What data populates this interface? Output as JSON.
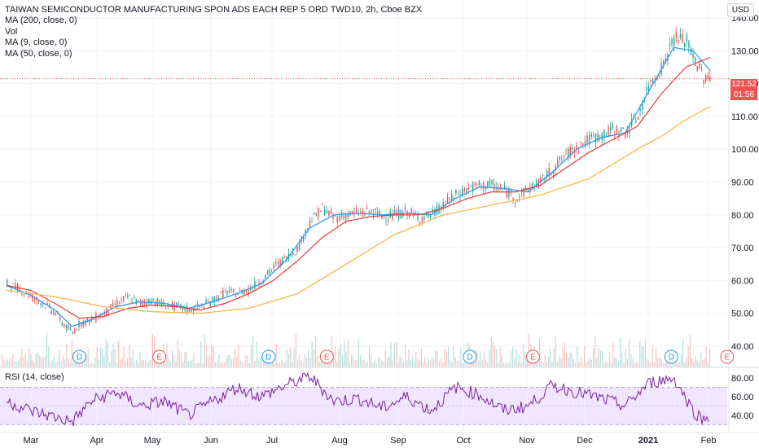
{
  "legend": {
    "title": "TAIWAN SEMICONDUCTOR MANUFACTURING SPON ADS EACH REP 5 ORD TWD10, 2h, Cboe BZX",
    "lines": [
      "MA (200, close, 0)",
      "Vol",
      "MA (9, close, 0)",
      "MA (50, close, 0)"
    ]
  },
  "rsi_legend": "RSI (14, close)",
  "currency": "USD",
  "price_tag": {
    "price": "121.52",
    "countdown": "01:56"
  },
  "colors": {
    "up": "#26a69a",
    "down": "#ef5350",
    "ma200": "#f5b342",
    "ma9": "#2196f3",
    "ma50": "#e53935",
    "rsi": "#7b1fa2",
    "rsi_band": "#f0e6ff"
  },
  "chart_data": [
    {
      "type": "line",
      "title": "TAIWAN SEMICONDUCTOR MANUFACTURING SPON ADS EACH REP 5 ORD TWD10, 2h, Cboe BZX",
      "x_ticks": [
        "Mar",
        "Apr",
        "May",
        "Jun",
        "Jul",
        "Aug",
        "Sep",
        "Oct",
        "Nov",
        "Dec",
        "2021",
        "Feb"
      ],
      "y_ticks": [
        40,
        50,
        60,
        70,
        80,
        90,
        100,
        110,
        120,
        130,
        140
      ],
      "y_tick_labels": [
        "40.00",
        "50.00",
        "60.00",
        "70.00",
        "80.00",
        "90.00",
        "100.00",
        "110.00",
        "120.00",
        "130.00",
        "140.00"
      ],
      "ylim": [
        35,
        143
      ],
      "last_price": 121.52,
      "series": [
        {
          "name": "close",
          "points": [
            [
              0,
              59
            ],
            [
              0.5,
              57.5
            ],
            [
              1,
              55
            ],
            [
              1.5,
              53
            ],
            [
              2,
              50
            ],
            [
              2.4,
              46
            ],
            [
              2.7,
              44
            ],
            [
              3,
              47
            ],
            [
              3.5,
              48
            ],
            [
              4,
              50
            ],
            [
              4.5,
              53
            ],
            [
              5,
              55
            ],
            [
              5.5,
              53
            ],
            [
              6,
              54
            ],
            [
              6.5,
              52.5
            ],
            [
              7,
              52
            ],
            [
              7.5,
              51
            ],
            [
              8,
              52
            ],
            [
              8.5,
              54
            ],
            [
              9,
              56.5
            ],
            [
              9.5,
              56
            ],
            [
              10,
              57.5
            ],
            [
              10.5,
              60
            ],
            [
              11,
              64
            ],
            [
              11.5,
              67
            ],
            [
              12,
              70
            ],
            [
              12.5,
              78
            ],
            [
              13,
              82
            ],
            [
              13.5,
              79
            ],
            [
              14,
              80
            ],
            [
              14.5,
              80.5
            ],
            [
              15,
              81
            ],
            [
              15.5,
              79.5
            ],
            [
              16,
              80
            ],
            [
              16.5,
              81
            ],
            [
              17,
              79
            ],
            [
              17.5,
              80
            ],
            [
              18,
              83
            ],
            [
              18.5,
              86
            ],
            [
              19,
              88
            ],
            [
              19.5,
              89
            ],
            [
              20,
              89
            ],
            [
              20.5,
              87.5
            ],
            [
              21,
              85
            ],
            [
              21.5,
              88
            ],
            [
              22,
              90
            ],
            [
              22.5,
              94
            ],
            [
              23,
              98
            ],
            [
              23.5,
              101
            ],
            [
              24,
              103
            ],
            [
              24.5,
              104
            ],
            [
              25,
              106
            ],
            [
              25.5,
              105
            ],
            [
              26,
              110
            ],
            [
              26.5,
              120
            ],
            [
              27,
              125
            ],
            [
              27.5,
              134
            ],
            [
              28,
              133
            ],
            [
              28.3,
              128
            ],
            [
              28.7,
              122
            ],
            [
              29,
              121.52
            ]
          ]
        },
        {
          "name": "MA (9, close, 0)",
          "points": [
            [
              0,
              58.5
            ],
            [
              1,
              55.5
            ],
            [
              2,
              51
            ],
            [
              2.7,
              46
            ],
            [
              3.5,
              48
            ],
            [
              4.5,
              52
            ],
            [
              5.5,
              53.5
            ],
            [
              6.5,
              53
            ],
            [
              7.5,
              51.5
            ],
            [
              8.5,
              53.5
            ],
            [
              9.5,
              56
            ],
            [
              10.5,
              59
            ],
            [
              11.5,
              66
            ],
            [
              12.5,
              76
            ],
            [
              13.5,
              80
            ],
            [
              14.5,
              80.5
            ],
            [
              15.5,
              80
            ],
            [
              16.5,
              80.5
            ],
            [
              17.5,
              80
            ],
            [
              18.5,
              85
            ],
            [
              19.5,
              88.5
            ],
            [
              20.5,
              88
            ],
            [
              21.5,
              87
            ],
            [
              22.5,
              93
            ],
            [
              23.5,
              100
            ],
            [
              24.5,
              103.5
            ],
            [
              25.5,
              105
            ],
            [
              26.5,
              118
            ],
            [
              27.5,
              131
            ],
            [
              28.3,
              130
            ],
            [
              29,
              124
            ]
          ]
        },
        {
          "name": "MA (50, close, 0)",
          "points": [
            [
              0,
              58.5
            ],
            [
              1,
              57
            ],
            [
              2,
              53
            ],
            [
              3,
              48.5
            ],
            [
              4,
              49
            ],
            [
              5,
              51.5
            ],
            [
              6,
              52.5
            ],
            [
              7,
              52
            ],
            [
              8,
              51
            ],
            [
              9,
              53
            ],
            [
              10,
              56
            ],
            [
              11,
              60
            ],
            [
              12,
              66
            ],
            [
              13,
              73
            ],
            [
              14,
              78
            ],
            [
              15,
              79.5
            ],
            [
              16,
              80
            ],
            [
              17,
              80
            ],
            [
              18,
              82
            ],
            [
              19,
              85
            ],
            [
              20,
              87
            ],
            [
              21,
              87
            ],
            [
              22,
              89
            ],
            [
              23,
              94
            ],
            [
              24,
              99
            ],
            [
              25,
              103
            ],
            [
              26,
              107
            ],
            [
              27,
              117
            ],
            [
              28,
              125
            ],
            [
              29,
              128
            ]
          ]
        },
        {
          "name": "MA (200, close, 0)",
          "points": [
            [
              0,
              57
            ],
            [
              2,
              55
            ],
            [
              4,
              52
            ],
            [
              6,
              50.5
            ],
            [
              8,
              50
            ],
            [
              10,
              51.5
            ],
            [
              12,
              56
            ],
            [
              14,
              65
            ],
            [
              16,
              74
            ],
            [
              18,
              80
            ],
            [
              20,
              83
            ],
            [
              22,
              86
            ],
            [
              24,
              91
            ],
            [
              26,
              100
            ],
            [
              27,
              104
            ],
            [
              28,
              109
            ],
            [
              29,
              113
            ]
          ]
        }
      ],
      "events": [
        {
          "label": "D",
          "x": 3.0
        },
        {
          "label": "E",
          "x": 6.3
        },
        {
          "label": "D",
          "x": 10.8
        },
        {
          "label": "E",
          "x": 13.2
        },
        {
          "label": "D",
          "x": 19.1
        },
        {
          "label": "E",
          "x": 21.7
        },
        {
          "label": "D",
          "x": 27.4
        },
        {
          "label": "E",
          "x": 29.7
        }
      ]
    },
    {
      "type": "line",
      "title": "RSI (14, close)",
      "y_ticks": [
        40,
        60,
        80
      ],
      "y_tick_labels": [
        "40.00",
        "60.00",
        "80.00"
      ],
      "ylim": [
        25,
        88
      ],
      "band": [
        30,
        70
      ],
      "series": [
        {
          "name": "RSI (14, close)",
          "points": [
            [
              0,
              55
            ],
            [
              1,
              45
            ],
            [
              2,
              38
            ],
            [
              2.7,
              33
            ],
            [
              3.5,
              55
            ],
            [
              4.5,
              65
            ],
            [
              5.5,
              50
            ],
            [
              6.5,
              55
            ],
            [
              7.5,
              40
            ],
            [
              8.5,
              55
            ],
            [
              9.5,
              70
            ],
            [
              10.5,
              60
            ],
            [
              11.5,
              72
            ],
            [
              12.5,
              82
            ],
            [
              13.5,
              55
            ],
            [
              14.5,
              58
            ],
            [
              15.5,
              48
            ],
            [
              16.5,
              60
            ],
            [
              17.5,
              45
            ],
            [
              18.5,
              70
            ],
            [
              19.5,
              62
            ],
            [
              20.5,
              45
            ],
            [
              21.5,
              50
            ],
            [
              22.5,
              72
            ],
            [
              23.5,
              65
            ],
            [
              24.5,
              58
            ],
            [
              25.5,
              50
            ],
            [
              26.5,
              75
            ],
            [
              27.5,
              80
            ],
            [
              28.3,
              45
            ],
            [
              28.7,
              35
            ],
            [
              29,
              40
            ]
          ]
        }
      ]
    }
  ]
}
